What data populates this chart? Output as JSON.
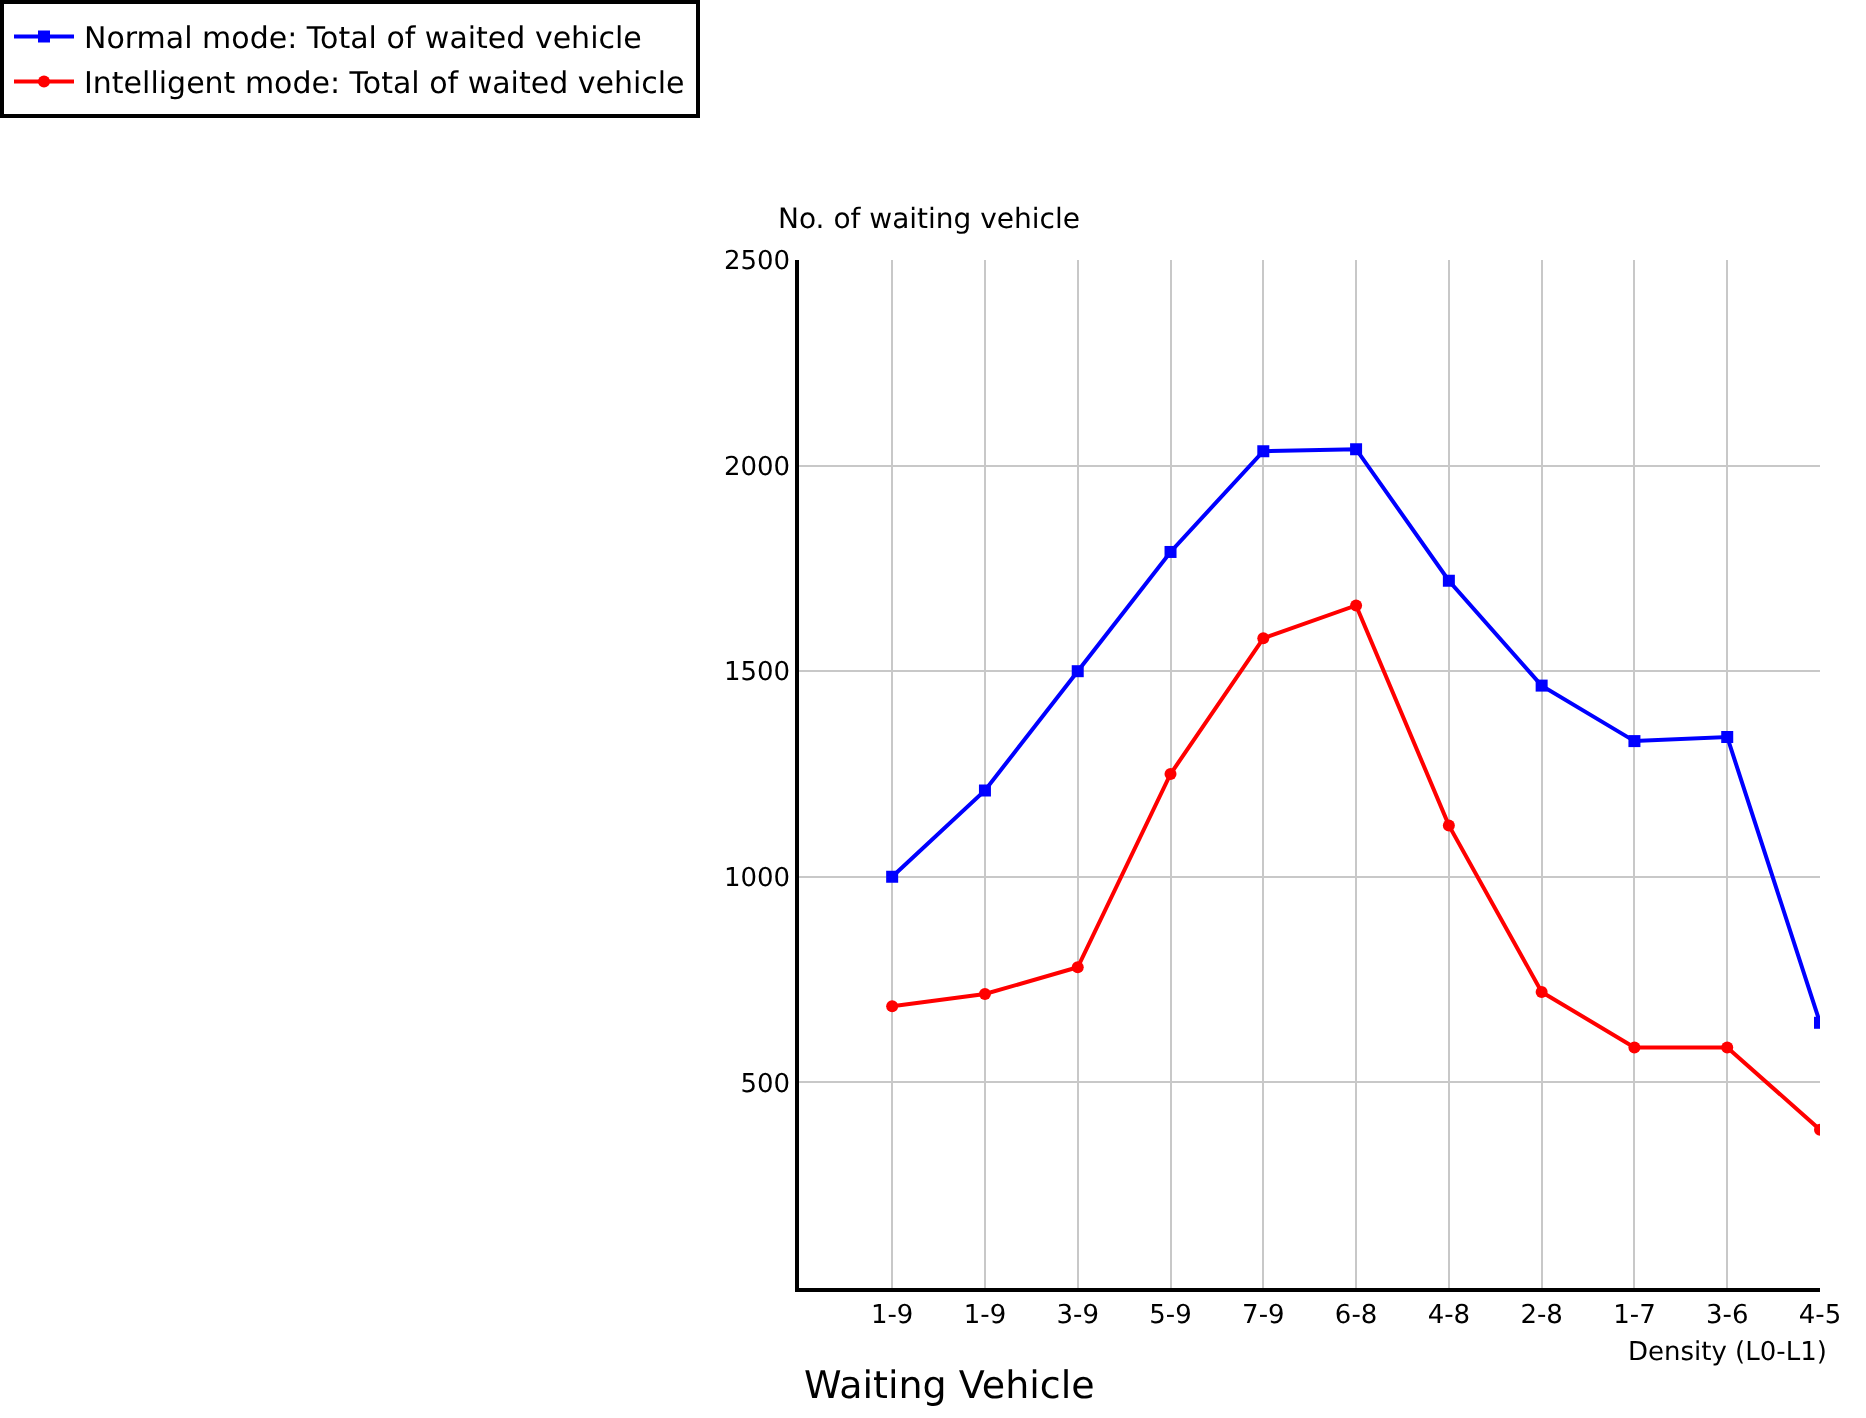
{
  "chart_data": {
    "type": "line",
    "title": "Waiting Vehicle",
    "xlabel": "Density (L0-L1)",
    "ylabel": "No. of waiting vehicle",
    "categories": [
      "1-9",
      "1-9",
      "3-9",
      "5-9",
      "7-9",
      "6-8",
      "4-8",
      "2-8",
      "1-7",
      "3-6",
      "4-5"
    ],
    "series": [
      {
        "name": "Normal mode: Total of waited vehicle",
        "color": "#0000ff",
        "marker": "square",
        "values": [
          1000,
          1210,
          1500,
          1790,
          2035,
          2040,
          1720,
          1465,
          1330,
          1340,
          645
        ]
      },
      {
        "name": "Intelligent mode: Total of waited vehicle",
        "color": "#ff0000",
        "marker": "circle",
        "values": [
          685,
          715,
          780,
          1250,
          1580,
          1660,
          1125,
          720,
          585,
          585,
          385
        ]
      }
    ],
    "ylim": [
      0,
      2500
    ],
    "yticks": [
      500,
      1000,
      1500,
      2000,
      2500
    ],
    "grid": true,
    "legend": "top",
    "line_style": "solid"
  }
}
